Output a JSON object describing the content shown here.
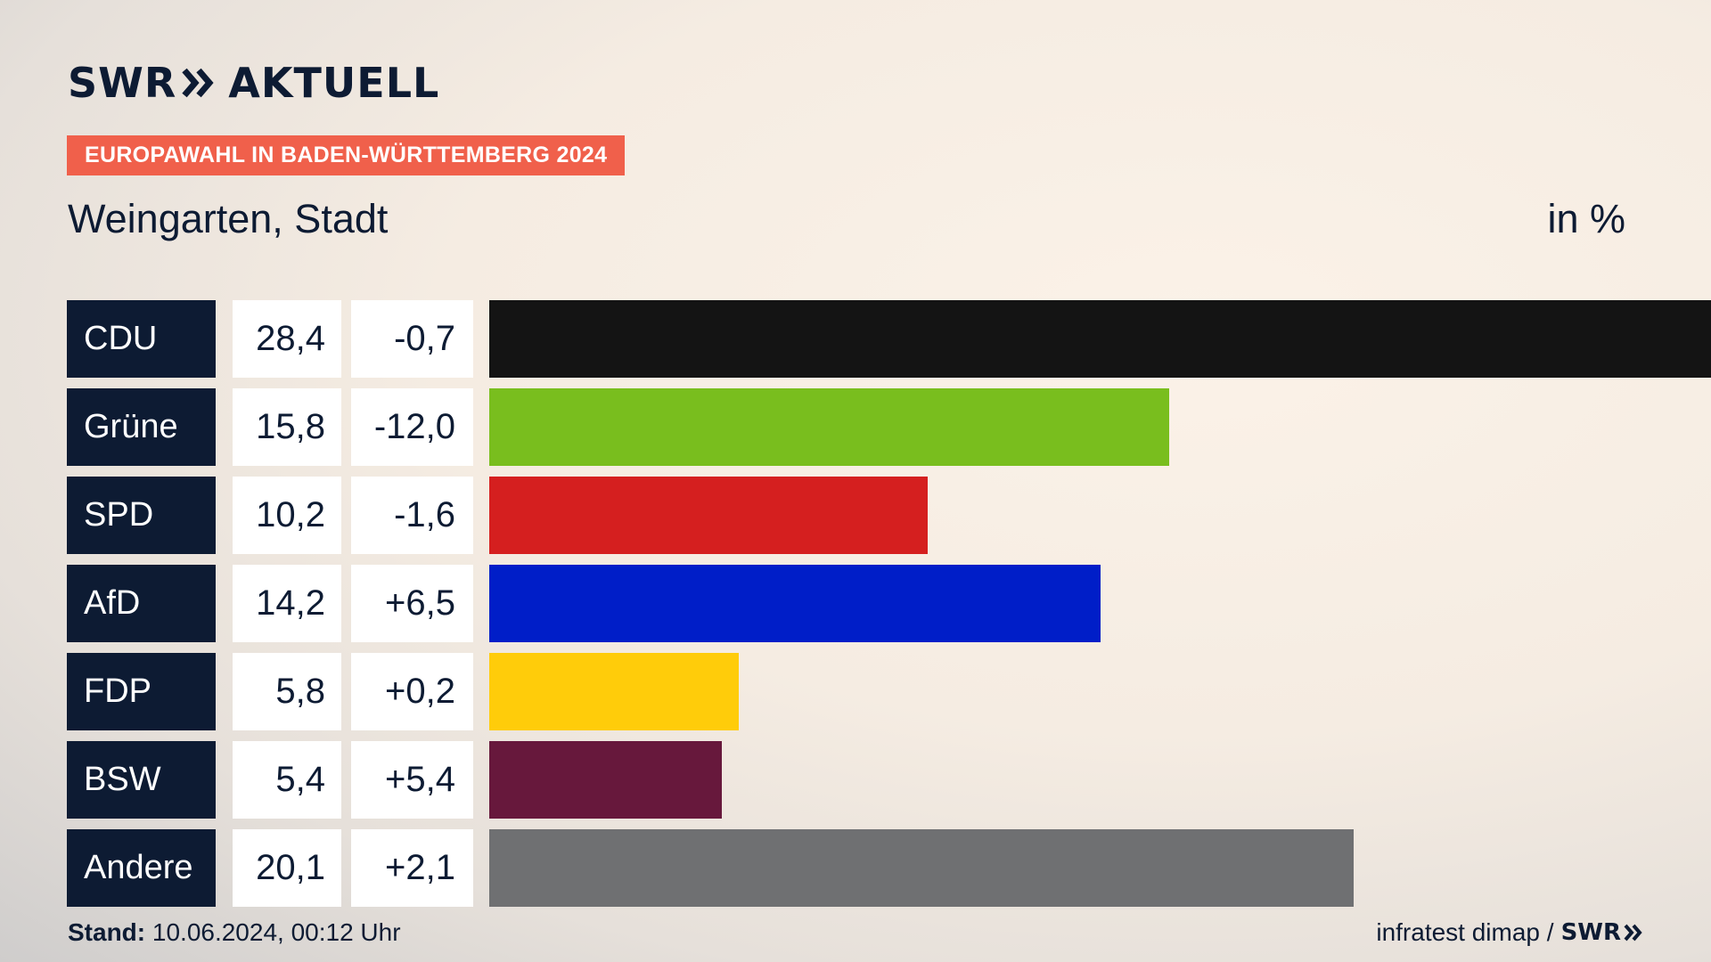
{
  "header": {
    "brand_left": "SWR",
    "brand_right": "AKTUELL",
    "tag": "EUROPAWAHL IN BADEN-WÜRTTEMBERG 2024",
    "location": "Weingarten, Stadt",
    "unit": "in %"
  },
  "chart_data": {
    "type": "bar",
    "orientation": "horizontal",
    "categories": [
      "CDU",
      "Grüne",
      "SPD",
      "AfD",
      "FDP",
      "BSW",
      "Andere"
    ],
    "values": [
      28.4,
      15.8,
      10.2,
      14.2,
      5.8,
      5.4,
      20.1
    ],
    "value_labels": [
      "28,4",
      "15,8",
      "10,2",
      "14,2",
      "5,8",
      "5,4",
      "20,1"
    ],
    "changes": [
      -0.7,
      -12.0,
      -1.6,
      6.5,
      0.2,
      5.4,
      2.1
    ],
    "change_labels": [
      "-0,7",
      "-12,0",
      "-1,6",
      "+6,5",
      "+0,2",
      "+5,4",
      "+2,1"
    ],
    "colors": [
      "#141414",
      "#79be1e",
      "#d51f1f",
      "#001ec8",
      "#ffcc0a",
      "#67183c",
      "#6f7072"
    ],
    "xlim": [
      0,
      28.4
    ]
  },
  "footer": {
    "stand_label": "Stand:",
    "stand_value": "10.06.2024, 00:12 Uhr",
    "source": "infratest dimap /",
    "source_brand": "SWR"
  }
}
